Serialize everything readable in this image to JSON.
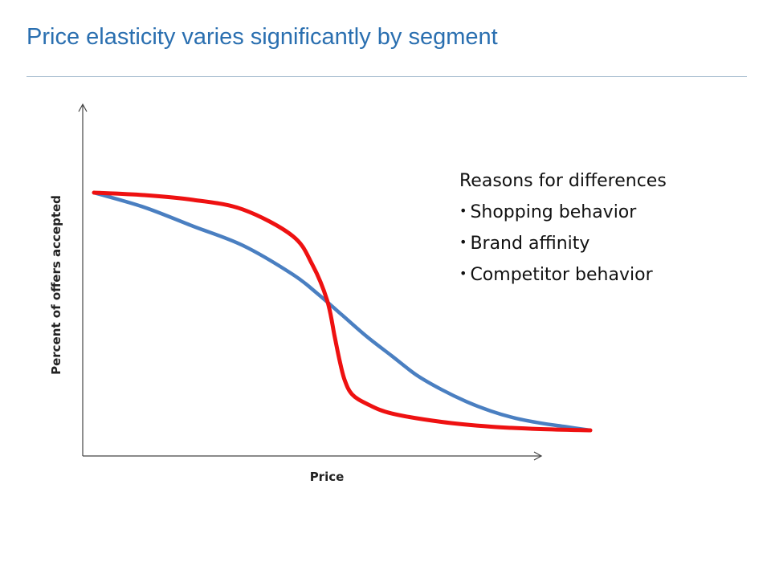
{
  "slide": {
    "title": "Price elasticity varies significantly by segment"
  },
  "colors": {
    "title": "#2a6fb0",
    "rule": "#9fb7cc",
    "blue_curve": "#4a7fc1",
    "red_curve": "#ee1111",
    "axis": "#444444"
  },
  "notes": {
    "heading": "Reasons for differences",
    "bullets": [
      "Shopping behavior",
      "Brand affinity",
      "Competitor behavior"
    ]
  },
  "chart_data": {
    "type": "line",
    "title": "",
    "xlabel": "Price",
    "ylabel": "Percent of offers accepted",
    "ticks": "none",
    "grid": false,
    "legend": "none",
    "xlim": [
      0,
      100
    ],
    "ylim": [
      0,
      100
    ],
    "series": [
      {
        "color": "#4a7fc1",
        "x": [
          0,
          10,
          20,
          30,
          40,
          45,
          50,
          55,
          60,
          65,
          70,
          75,
          80,
          85,
          90,
          95,
          100
        ],
        "y": [
          100,
          94,
          86,
          78,
          66,
          58,
          49,
          40,
          32,
          24,
          18,
          13,
          9,
          6,
          4,
          2.5,
          1
        ]
      },
      {
        "color": "#ee1111",
        "x": [
          0,
          10,
          20,
          30,
          40,
          44,
          47,
          48.5,
          49.5,
          50.5,
          52,
          55,
          60,
          70,
          80,
          90,
          100
        ],
        "y": [
          100,
          99,
          97,
          93,
          82,
          70,
          55,
          40,
          30,
          22,
          16,
          12,
          8,
          4.5,
          2.5,
          1.5,
          1
        ]
      }
    ]
  }
}
